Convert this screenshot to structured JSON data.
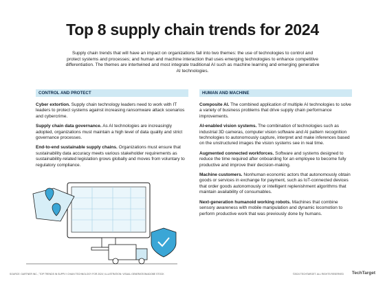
{
  "header": {
    "title": "Top 8 supply chain trends for 2024",
    "intro": "Supply chain trends that will have an impact on organizations fall into two themes: the use of technologies to control and protect systems and processes; and human and machine interaction that uses emerging technologies to enhance competitive differentiation. The themes are intertwined and most integrate traditional AI such as machine learning and emerging generative AI technologies."
  },
  "columns": [
    {
      "heading": "CONTROL AND PROTECT",
      "items": [
        {
          "title": "Cyber extortion.",
          "text": "Supply chain technology leaders need to work with IT leaders to protect systems against increasing ransomware attack scenarios and cybercrime."
        },
        {
          "title": "Supply chain data governance.",
          "text": "As AI technologies are increasingly adopted, organizations must maintain a high level of data quality and strict governance processes."
        },
        {
          "title": "End-to-end sustainable supply chains.",
          "text": "Organizations must ensure that sustainability data accuracy meets various stakeholder requirements as sustainability-related legislation grows globally and moves from voluntary to regulatory compliance."
        }
      ]
    },
    {
      "heading": "HUMAN AND MACHINE",
      "items": [
        {
          "title": "Composite AI.",
          "text": "The combined application of multiple AI technologies to solve a variety of business problems that drive supply chain performance improvements."
        },
        {
          "title": "AI-enabled vision systems.",
          "text": "The combination of technologies such as industrial 3D cameras, computer vision software and AI pattern recognition technologies to autonomously capture, interpret and make inferences based on the unstructured images the vision systems see in real time."
        },
        {
          "title": "Augmented connected workforces.",
          "text": "Software and systems designed to reduce the time required after onboarding for an employee to become fully productive and improve their decision-making."
        },
        {
          "title": "Machine customers.",
          "text": "Nonhuman economic actors that autonomously obtain goods or services in exchange for payment, such as IoT-connected devices that order goods autonomously or intelligent replenishment algorithms that maintain availability of consumables."
        },
        {
          "title": "Next-generation humanoid working robots.",
          "text": "Machines that combine sensory awareness with mobile manipulation and dynamic locomotion to perform productive work that was previously done by humans."
        }
      ]
    }
  ],
  "footer": {
    "source": "SOURCE: GARTNER INC., 'TOP TRENDS IN SUPPLY CHAIN TECHNOLOGY FOR 2024'; ILLUSTRATION: VISUAL GENERATION/ADOBE STOCK",
    "copyright": "©2024 TECHTARGET. ALL RIGHTS RESERVED",
    "logo": "TechTarget"
  }
}
